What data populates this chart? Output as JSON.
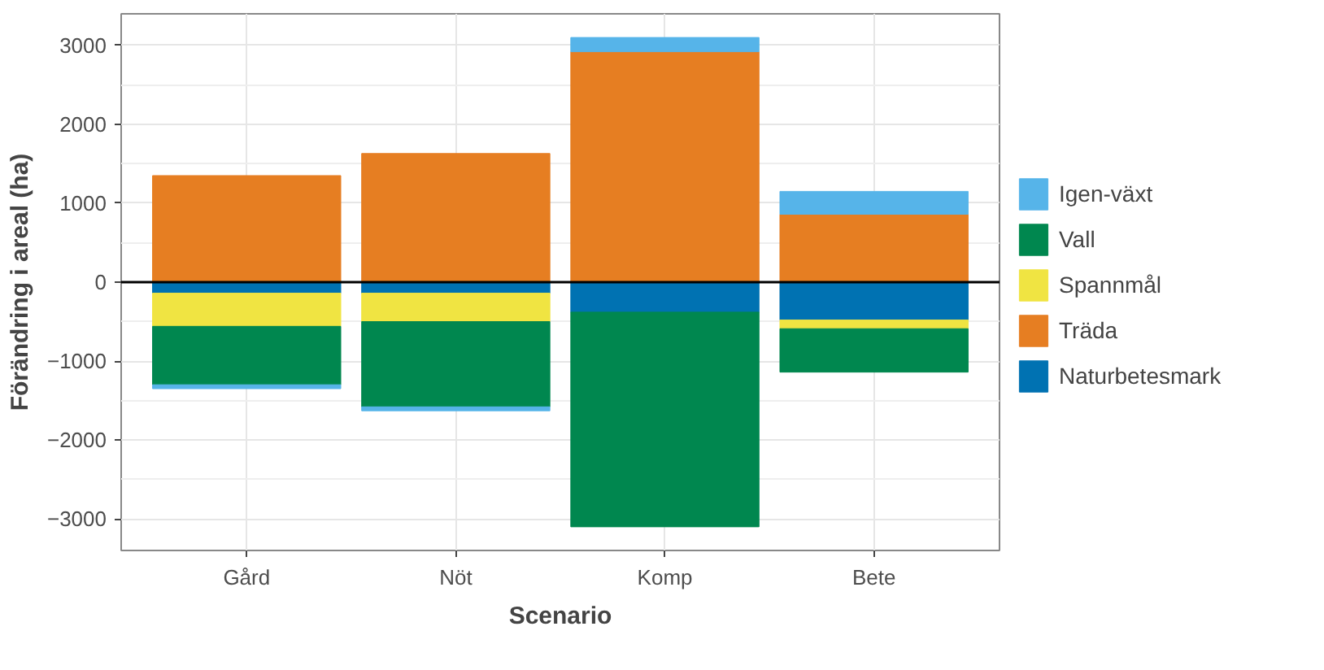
{
  "chart_data": {
    "type": "bar",
    "stacked": true,
    "xlabel": "Scenario",
    "ylabel": "Förändring i areal (ha)",
    "categories": [
      "Gård",
      "Nöt",
      "Komp",
      "Bete"
    ],
    "series": [
      {
        "name": "Naturbetesmark",
        "color": "#0072b2",
        "values": [
          -140,
          -140,
          -380,
          -480
        ]
      },
      {
        "name": "Träda",
        "color": "#e67e22",
        "values": [
          1350,
          1630,
          2920,
          860
        ]
      },
      {
        "name": "Spannmål",
        "color": "#f0e442",
        "values": [
          -420,
          -360,
          null,
          -110
        ]
      },
      {
        "name": "Vall",
        "color": "#00874f",
        "values": [
          -740,
          -1080,
          -2720,
          -550
        ]
      },
      {
        "name": "Igen-växt",
        "color": "#56b4e9",
        "values": [
          -50,
          -50,
          180,
          290
        ]
      }
    ],
    "ylim": [
      -3400,
      3400
    ],
    "yticks": [
      -3000,
      -2000,
      -1000,
      0,
      1000,
      2000,
      3000
    ],
    "ref_lines": [
      {
        "axis": "y",
        "value": 0,
        "color": "#000000"
      }
    ],
    "grid": true,
    "legend": "right"
  }
}
